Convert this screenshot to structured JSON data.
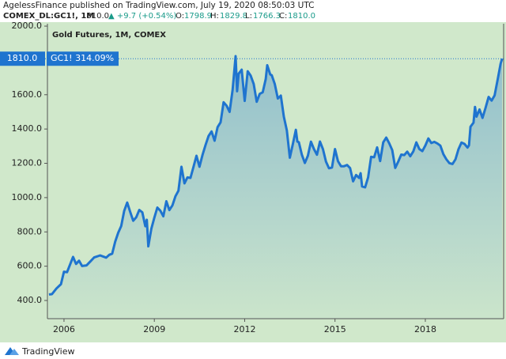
{
  "header": {
    "publisher": "AgelessFinance published on TradingView.com, July 19, 2020 08:50:03 UTC",
    "symbol": "COMEX_DL:GC1!, 1M",
    "last": "1810.0",
    "change": "▲ +9.7 (+0.54%)",
    "ohlc": [
      "O:",
      "1798.9",
      "H:",
      "1829.8",
      "L:",
      "1766.3",
      "C:",
      "1810.0"
    ]
  },
  "chart_data": {
    "type": "area",
    "legend": "Gold Futures, 1M, COMEX",
    "series_label": "GC1! 314.09%",
    "price_line": {
      "value": 1810,
      "label": "1810.0"
    },
    "color": "#1f74cf",
    "background": "#d0e8cb",
    "x": [
      2005.5,
      2005.6,
      2005.75,
      2005.9,
      2006.0,
      2006.1,
      2006.3,
      2006.4,
      2006.5,
      2006.6,
      2006.75,
      2006.9,
      2007.0,
      2007.2,
      2007.4,
      2007.5,
      2007.6,
      2007.7,
      2007.8,
      2007.9,
      2008.0,
      2008.1,
      2008.2,
      2008.3,
      2008.4,
      2008.5,
      2008.6,
      2008.7,
      2008.75,
      2008.8,
      2008.9,
      2009.0,
      2009.1,
      2009.2,
      2009.3,
      2009.4,
      2009.5,
      2009.6,
      2009.7,
      2009.8,
      2009.9,
      2010.0,
      2010.1,
      2010.2,
      2010.3,
      2010.4,
      2010.5,
      2010.6,
      2010.7,
      2010.8,
      2010.9,
      2011.0,
      2011.1,
      2011.2,
      2011.3,
      2011.4,
      2011.5,
      2011.6,
      2011.7,
      2011.75,
      2011.8,
      2011.9,
      2012.0,
      2012.1,
      2012.2,
      2012.3,
      2012.4,
      2012.5,
      2012.6,
      2012.7,
      2012.75,
      2012.85,
      2012.9,
      2013.0,
      2013.1,
      2013.2,
      2013.3,
      2013.4,
      2013.5,
      2013.6,
      2013.7,
      2013.75,
      2013.8,
      2013.9,
      2014.0,
      2014.1,
      2014.2,
      2014.3,
      2014.4,
      2014.5,
      2014.6,
      2014.7,
      2014.8,
      2014.9,
      2015.0,
      2015.1,
      2015.2,
      2015.3,
      2015.4,
      2015.5,
      2015.6,
      2015.7,
      2015.8,
      2015.85,
      2015.9,
      2016.0,
      2016.1,
      2016.2,
      2016.3,
      2016.4,
      2016.5,
      2016.6,
      2016.7,
      2016.8,
      2016.9,
      2017.0,
      2017.1,
      2017.2,
      2017.3,
      2017.4,
      2017.5,
      2017.6,
      2017.7,
      2017.8,
      2017.9,
      2018.0,
      2018.1,
      2018.2,
      2018.3,
      2018.4,
      2018.5,
      2018.6,
      2018.7,
      2018.8,
      2018.9,
      2019.0,
      2019.1,
      2019.2,
      2019.3,
      2019.4,
      2019.45,
      2019.5,
      2019.6,
      2019.65,
      2019.7,
      2019.8,
      2019.9,
      2020.0,
      2020.1,
      2020.2,
      2020.3,
      2020.4,
      2020.5,
      2020.55
    ],
    "values": [
      435,
      437,
      470,
      495,
      568,
      565,
      654,
      613,
      632,
      601,
      605,
      632,
      651,
      663,
      650,
      666,
      673,
      743,
      795,
      834,
      923,
      971,
      916,
      865,
      886,
      928,
      914,
      833,
      871,
      716,
      818,
      883,
      942,
      924,
      891,
      979,
      927,
      955,
      1008,
      1040,
      1180,
      1083,
      1118,
      1115,
      1179,
      1244,
      1180,
      1248,
      1307,
      1359,
      1386,
      1332,
      1411,
      1439,
      1556,
      1536,
      1500,
      1628,
      1825,
      1620,
      1722,
      1746,
      1564,
      1737,
      1711,
      1662,
      1559,
      1605,
      1614,
      1691,
      1772,
      1718,
      1714,
      1663,
      1578,
      1595,
      1472,
      1392,
      1233,
      1312,
      1395,
      1327,
      1323,
      1250,
      1202,
      1244,
      1326,
      1283,
      1250,
      1327,
      1282,
      1210,
      1171,
      1175,
      1283,
      1212,
      1183,
      1183,
      1190,
      1172,
      1095,
      1132,
      1115,
      1142,
      1065,
      1060,
      1118,
      1238,
      1235,
      1293,
      1213,
      1322,
      1350,
      1317,
      1277,
      1173,
      1210,
      1251,
      1248,
      1268,
      1241,
      1269,
      1322,
      1283,
      1271,
      1304,
      1345,
      1318,
      1325,
      1316,
      1303,
      1253,
      1223,
      1201,
      1196,
      1223,
      1282,
      1321,
      1313,
      1292,
      1305,
      1413,
      1437,
      1529,
      1472,
      1514,
      1465,
      1523,
      1587,
      1566,
      1596,
      1687,
      1781,
      1810
    ],
    "xlim": [
      2005.45,
      2020.6
    ],
    "xticks": [
      2006,
      2009,
      2012,
      2015,
      2018
    ],
    "ylim": [
      294,
      2014
    ],
    "yticks": [
      {
        "value": 400,
        "label": "400.0"
      },
      {
        "value": 600,
        "label": "600.0"
      },
      {
        "value": 800,
        "label": "800.0"
      },
      {
        "value": 1000,
        "label": "1000.0"
      },
      {
        "value": 1200,
        "label": "1200.0"
      },
      {
        "value": 1400,
        "label": "1400.0"
      },
      {
        "value": 1600,
        "label": "1600.0"
      },
      {
        "value": 2000,
        "label": "2000.0"
      }
    ]
  },
  "footer": {
    "brand": "TradingView"
  }
}
